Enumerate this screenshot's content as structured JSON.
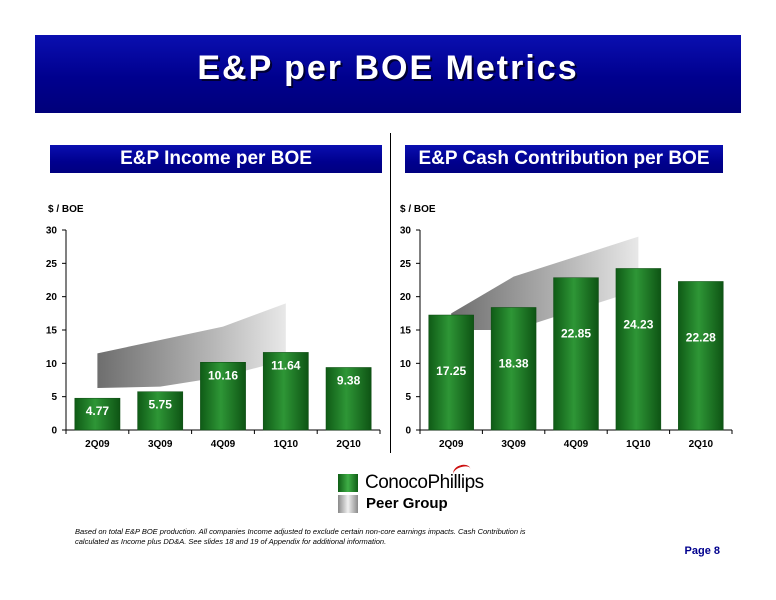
{
  "title": "E&P per BOE Metrics",
  "legend": {
    "company": "ConocoPhillips",
    "peer": "Peer Group"
  },
  "footnote": "Based on total E&P BOE production.  All companies Income adjusted to exclude certain non-core earnings impacts.  Cash Contribution is calculated as Income plus DD&A. See slides 18 and 19 of Appendix for additional information.",
  "page": "Page 8",
  "colors": {
    "banner": "#00008e",
    "bar_green": "#1e7d25",
    "peer_gray": "#9a9a9a"
  },
  "chart_data": [
    {
      "type": "bar",
      "title": "E&P Income per BOE",
      "ylabel": "$ / BOE",
      "ylim": [
        0,
        30
      ],
      "yticks": [
        0,
        5,
        10,
        15,
        20,
        25,
        30
      ],
      "categories": [
        "2Q09",
        "3Q09",
        "4Q09",
        "1Q10",
        "2Q10"
      ],
      "series": [
        {
          "name": "ConocoPhillips",
          "values": [
            4.77,
            5.75,
            10.16,
            11.64,
            9.38
          ],
          "labels": [
            "4.77",
            "5.75",
            "10.16",
            "11.64",
            "9.38"
          ]
        }
      ],
      "peer_range": {
        "name": "Peer Group",
        "x": [
          "2Q09",
          "3Q09",
          "4Q09",
          "1Q10"
        ],
        "low": [
          6.3,
          6.5,
          8.0,
          10.5
        ],
        "high": [
          11.5,
          13.5,
          15.5,
          19
        ]
      }
    },
    {
      "type": "bar",
      "title": "E&P Cash Contribution per BOE",
      "ylabel": "$ / BOE",
      "ylim": [
        0,
        30
      ],
      "yticks": [
        0,
        5,
        10,
        15,
        20,
        25,
        30
      ],
      "categories": [
        "2Q09",
        "3Q09",
        "4Q09",
        "1Q10",
        "2Q10"
      ],
      "series": [
        {
          "name": "ConocoPhillips",
          "values": [
            17.25,
            18.38,
            22.85,
            24.23,
            22.28
          ],
          "labels": [
            "17.25",
            "18.38",
            "22.85",
            "24.23",
            "22.28"
          ]
        }
      ],
      "peer_range": {
        "name": "Peer Group",
        "x": [
          "2Q09",
          "3Q09",
          "4Q09",
          "1Q10"
        ],
        "low": [
          15,
          15,
          18,
          21
        ],
        "high": [
          17.5,
          23,
          26,
          29
        ]
      }
    }
  ]
}
